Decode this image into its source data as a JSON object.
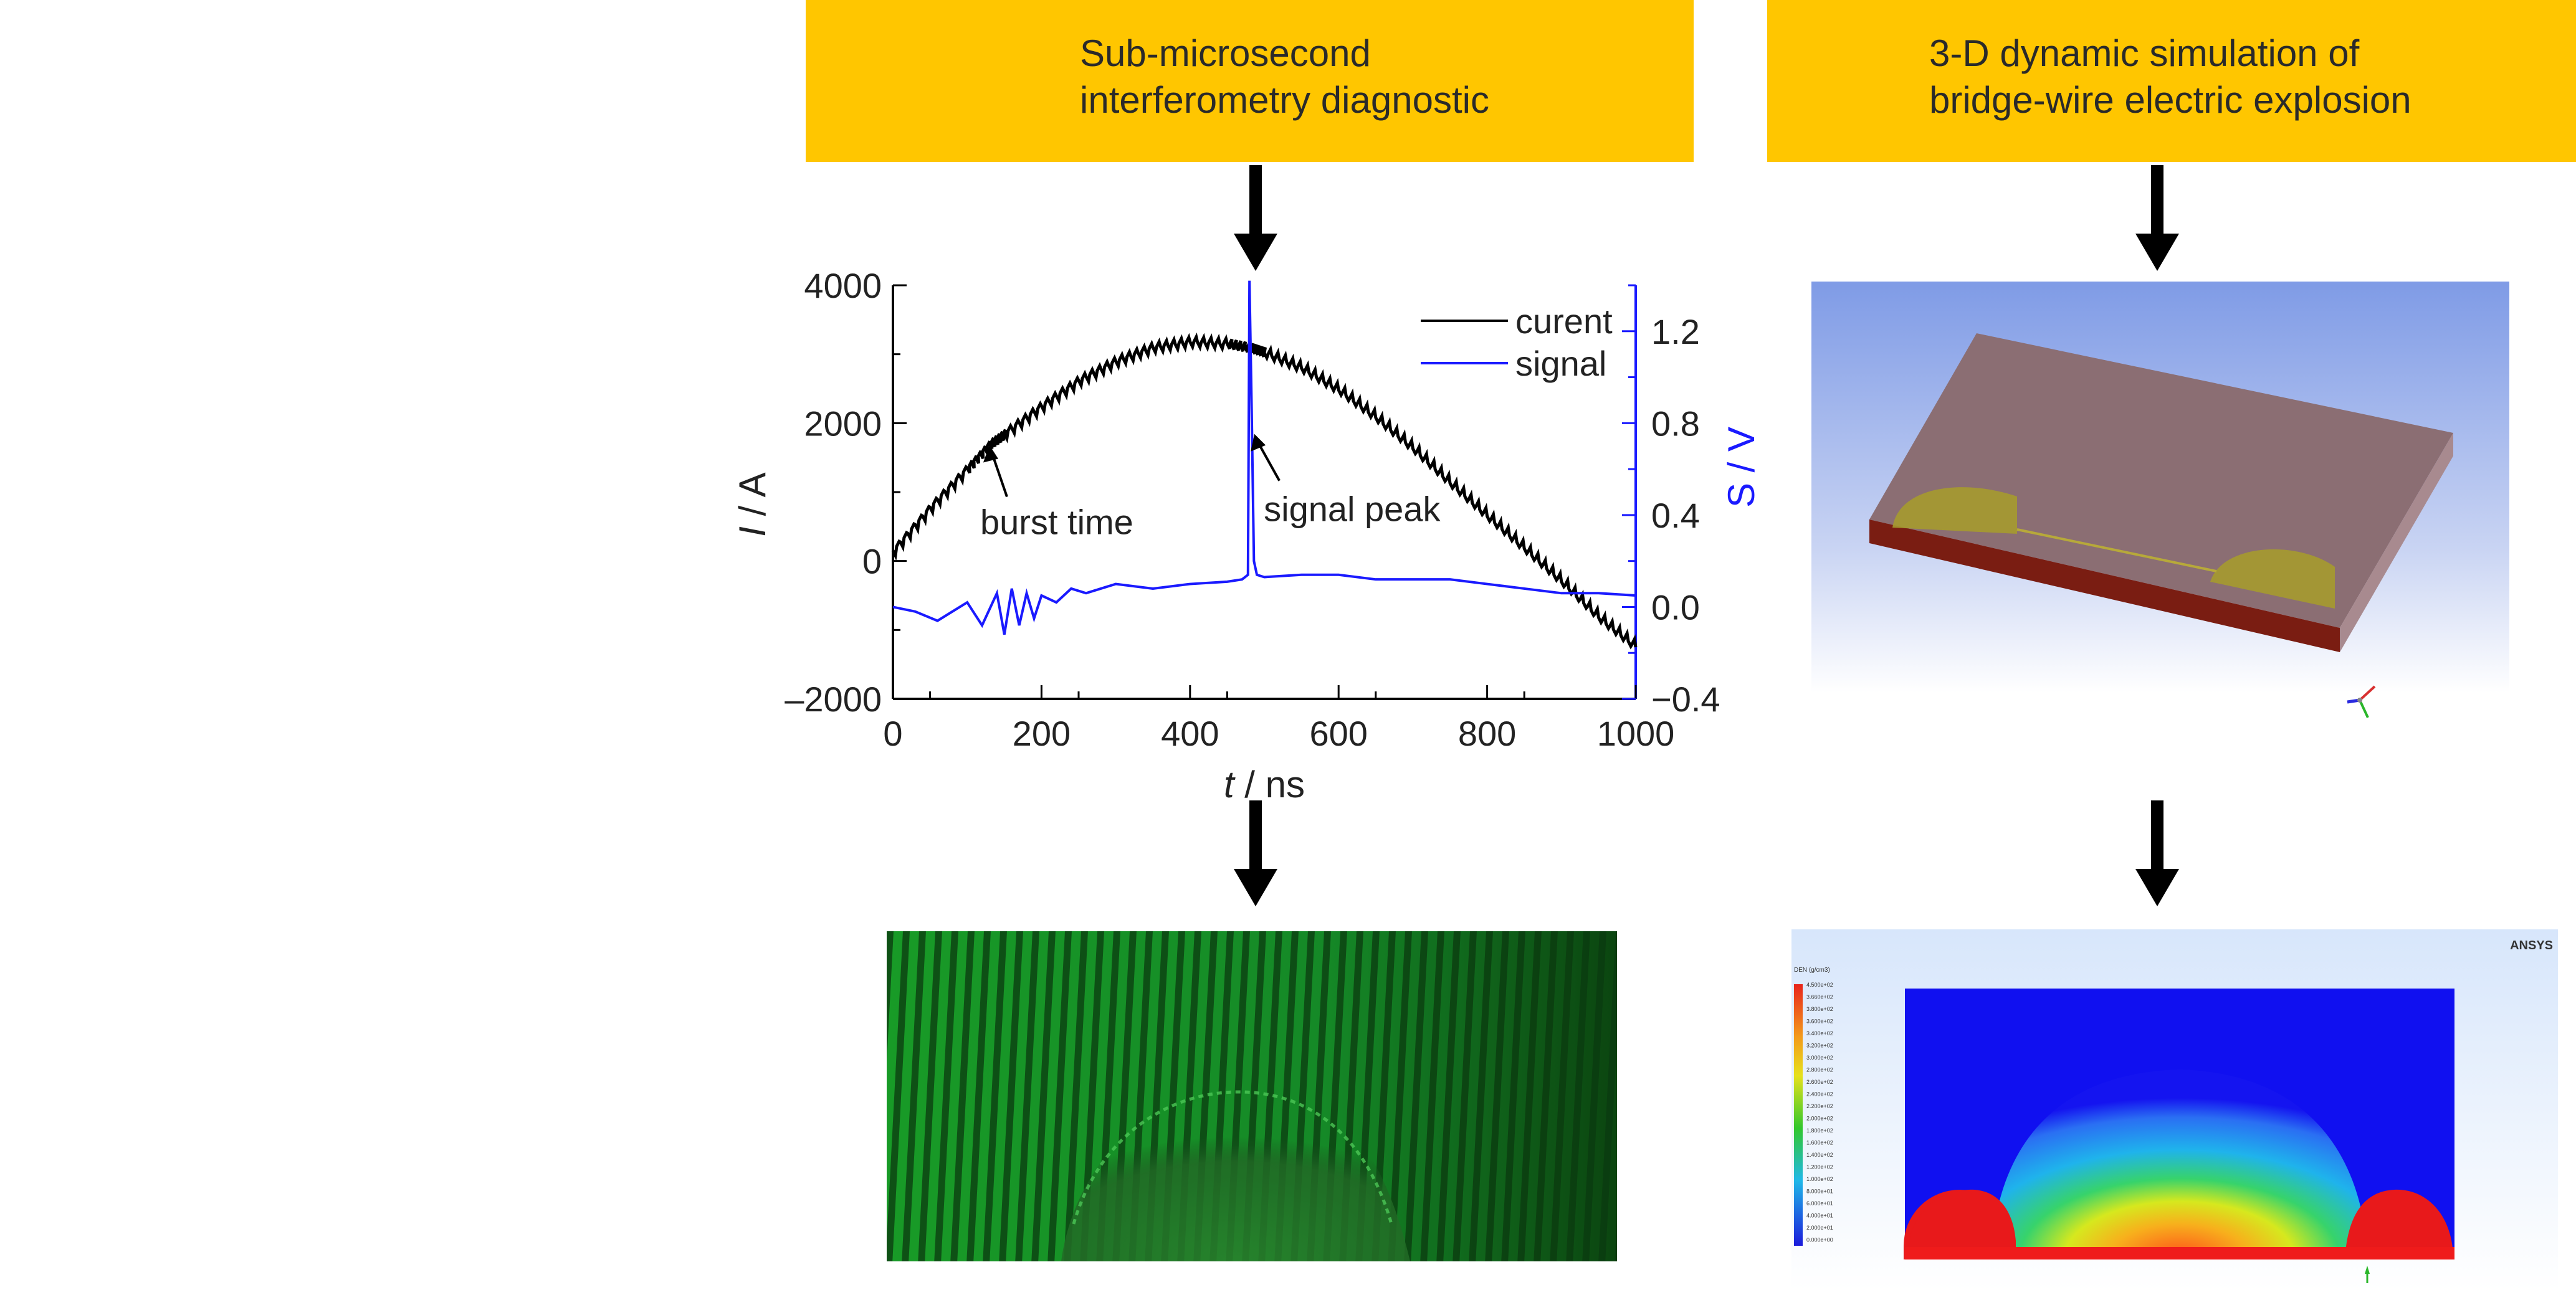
{
  "headers": {
    "left": [
      "Sub-microsecond",
      "interferometry diagnostic"
    ],
    "right": [
      "3-D dynamic simulation of",
      "bridge-wire electric explosion"
    ]
  },
  "colors": {
    "header_bg": "#ffc600",
    "current": "#000000",
    "signal": "#1a1aff",
    "interferogram": "#1fbd2b",
    "simulation_bg": "#1010f0"
  },
  "chart_data": {
    "type": "line",
    "x_ticks": [
      "0",
      "200",
      "400",
      "600",
      "800",
      "1000"
    ],
    "y_left_ticks": [
      "4000",
      "2000",
      "0",
      "–2000"
    ],
    "y_right_ticks": [
      "1.2",
      "0.8",
      "0.4",
      "0.0",
      "−0.4"
    ],
    "xlabel_italic": "t",
    "xlabel_rest": " / ns",
    "ylabel_left_italic": "I",
    "ylabel_left_rest": " / A",
    "ylabel_right": "S / V",
    "xlim": [
      0,
      1000
    ],
    "ylim_left": [
      -2000,
      4000
    ],
    "ylim_right": [
      -0.4,
      1.4
    ],
    "legend_position": "top-right",
    "series": [
      {
        "name": "curent",
        "axis": "left",
        "x": [
          0,
          50,
          100,
          130,
          150,
          200,
          250,
          300,
          350,
          400,
          450,
          480,
          500,
          550,
          600,
          650,
          700,
          750,
          800,
          850,
          900,
          950,
          1000
        ],
        "y": [
          150,
          780,
          1350,
          1700,
          1850,
          2250,
          2620,
          2900,
          3100,
          3180,
          3150,
          3090,
          3020,
          2800,
          2480,
          2080,
          1630,
          1130,
          650,
          180,
          -300,
          -820,
          -1250
        ]
      },
      {
        "name": "signal",
        "axis": "right",
        "x": [
          0,
          30,
          60,
          100,
          120,
          140,
          150,
          160,
          170,
          180,
          190,
          200,
          220,
          240,
          260,
          300,
          350,
          400,
          450,
          470,
          478,
          480,
          483,
          486,
          490,
          500,
          550,
          600,
          650,
          700,
          750,
          800,
          850,
          900,
          950,
          1000
        ],
        "y": [
          0.0,
          -0.02,
          -0.06,
          0.02,
          -0.08,
          0.06,
          -0.12,
          0.08,
          -0.08,
          0.06,
          -0.05,
          0.05,
          0.02,
          0.08,
          0.06,
          0.1,
          0.08,
          0.1,
          0.11,
          0.12,
          0.14,
          1.42,
          0.85,
          0.2,
          0.14,
          0.13,
          0.14,
          0.14,
          0.12,
          0.12,
          0.12,
          0.1,
          0.08,
          0.06,
          0.06,
          0.05
        ]
      }
    ],
    "annotations": [
      {
        "text": "burst time",
        "x": 130,
        "y": 1700,
        "axis": "left"
      },
      {
        "text": "signal peak",
        "x": 480,
        "y": 0.78,
        "axis": "right"
      }
    ]
  },
  "simulation": {
    "brand": "ANSYS",
    "legend_title": "DEN (g/cm3)",
    "legend_values": [
      "4.500e+02",
      "3.660e+02",
      "3.800e+02",
      "3.600e+02",
      "3.400e+02",
      "3.200e+02",
      "3.000e+02",
      "2.800e+02",
      "2.600e+02",
      "2.400e+02",
      "2.200e+02",
      "2.000e+02",
      "1.800e+02",
      "1.600e+02",
      "1.400e+02",
      "1.200e+02",
      "1.000e+02",
      "8.000e+01",
      "6.000e+01",
      "4.000e+01",
      "2.000e+01",
      "0.000e+00"
    ]
  }
}
